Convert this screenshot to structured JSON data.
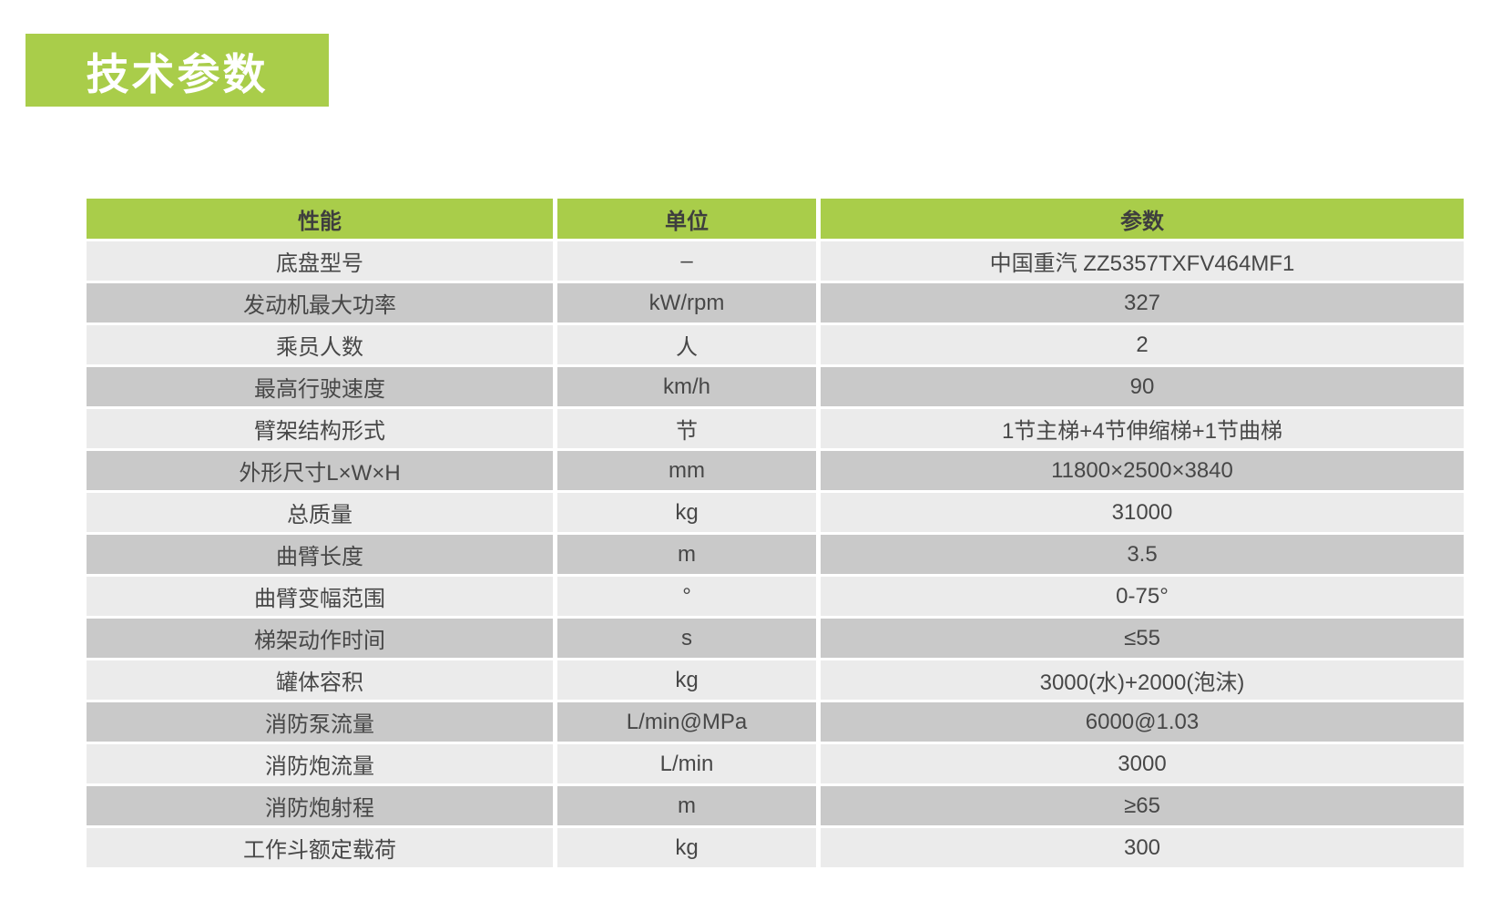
{
  "page": {
    "section_title": "技术参数"
  },
  "table": {
    "headers": [
      "性能",
      "单位",
      "参数"
    ],
    "rows": [
      {
        "perf": "底盘型号",
        "unit": "–",
        "param": "中国重汽 ZZ5357TXFV464MF1"
      },
      {
        "perf": "发动机最大功率",
        "unit": "kW/rpm",
        "param": "327"
      },
      {
        "perf": "乘员人数",
        "unit": "人",
        "param": "2"
      },
      {
        "perf": "最高行驶速度",
        "unit": "km/h",
        "param": "90"
      },
      {
        "perf": "臂架结构形式",
        "unit": "节",
        "param": "1节主梯+4节伸缩梯+1节曲梯"
      },
      {
        "perf": "外形尺寸L×W×H",
        "unit": "mm",
        "param": "11800×2500×3840"
      },
      {
        "perf": "总质量",
        "unit": "kg",
        "param": "31000"
      },
      {
        "perf": "曲臂长度",
        "unit": "m",
        "param": "3.5"
      },
      {
        "perf": "曲臂变幅范围",
        "unit": "°",
        "param": "0-75°"
      },
      {
        "perf": "梯架动作时间",
        "unit": "s",
        "param": "≤55"
      },
      {
        "perf": "罐体容积",
        "unit": "kg",
        "param": "3000(水)+2000(泡沫)"
      },
      {
        "perf": "消防泵流量",
        "unit": "L/min@MPa",
        "param": "6000@1.03"
      },
      {
        "perf": "消防炮流量",
        "unit": "L/min",
        "param": "3000"
      },
      {
        "perf": "消防炮射程",
        "unit": "m",
        "param": "≥65"
      },
      {
        "perf": "工作斗额定载荷",
        "unit": "kg",
        "param": "300"
      }
    ]
  },
  "colors": {
    "accent_green": "#a9cd4a",
    "row_light": "#ebebeb",
    "row_dark": "#c9c9c9",
    "header_text": "#3e3e3e",
    "body_text": "#474747",
    "badge_text": "#ffffff"
  }
}
